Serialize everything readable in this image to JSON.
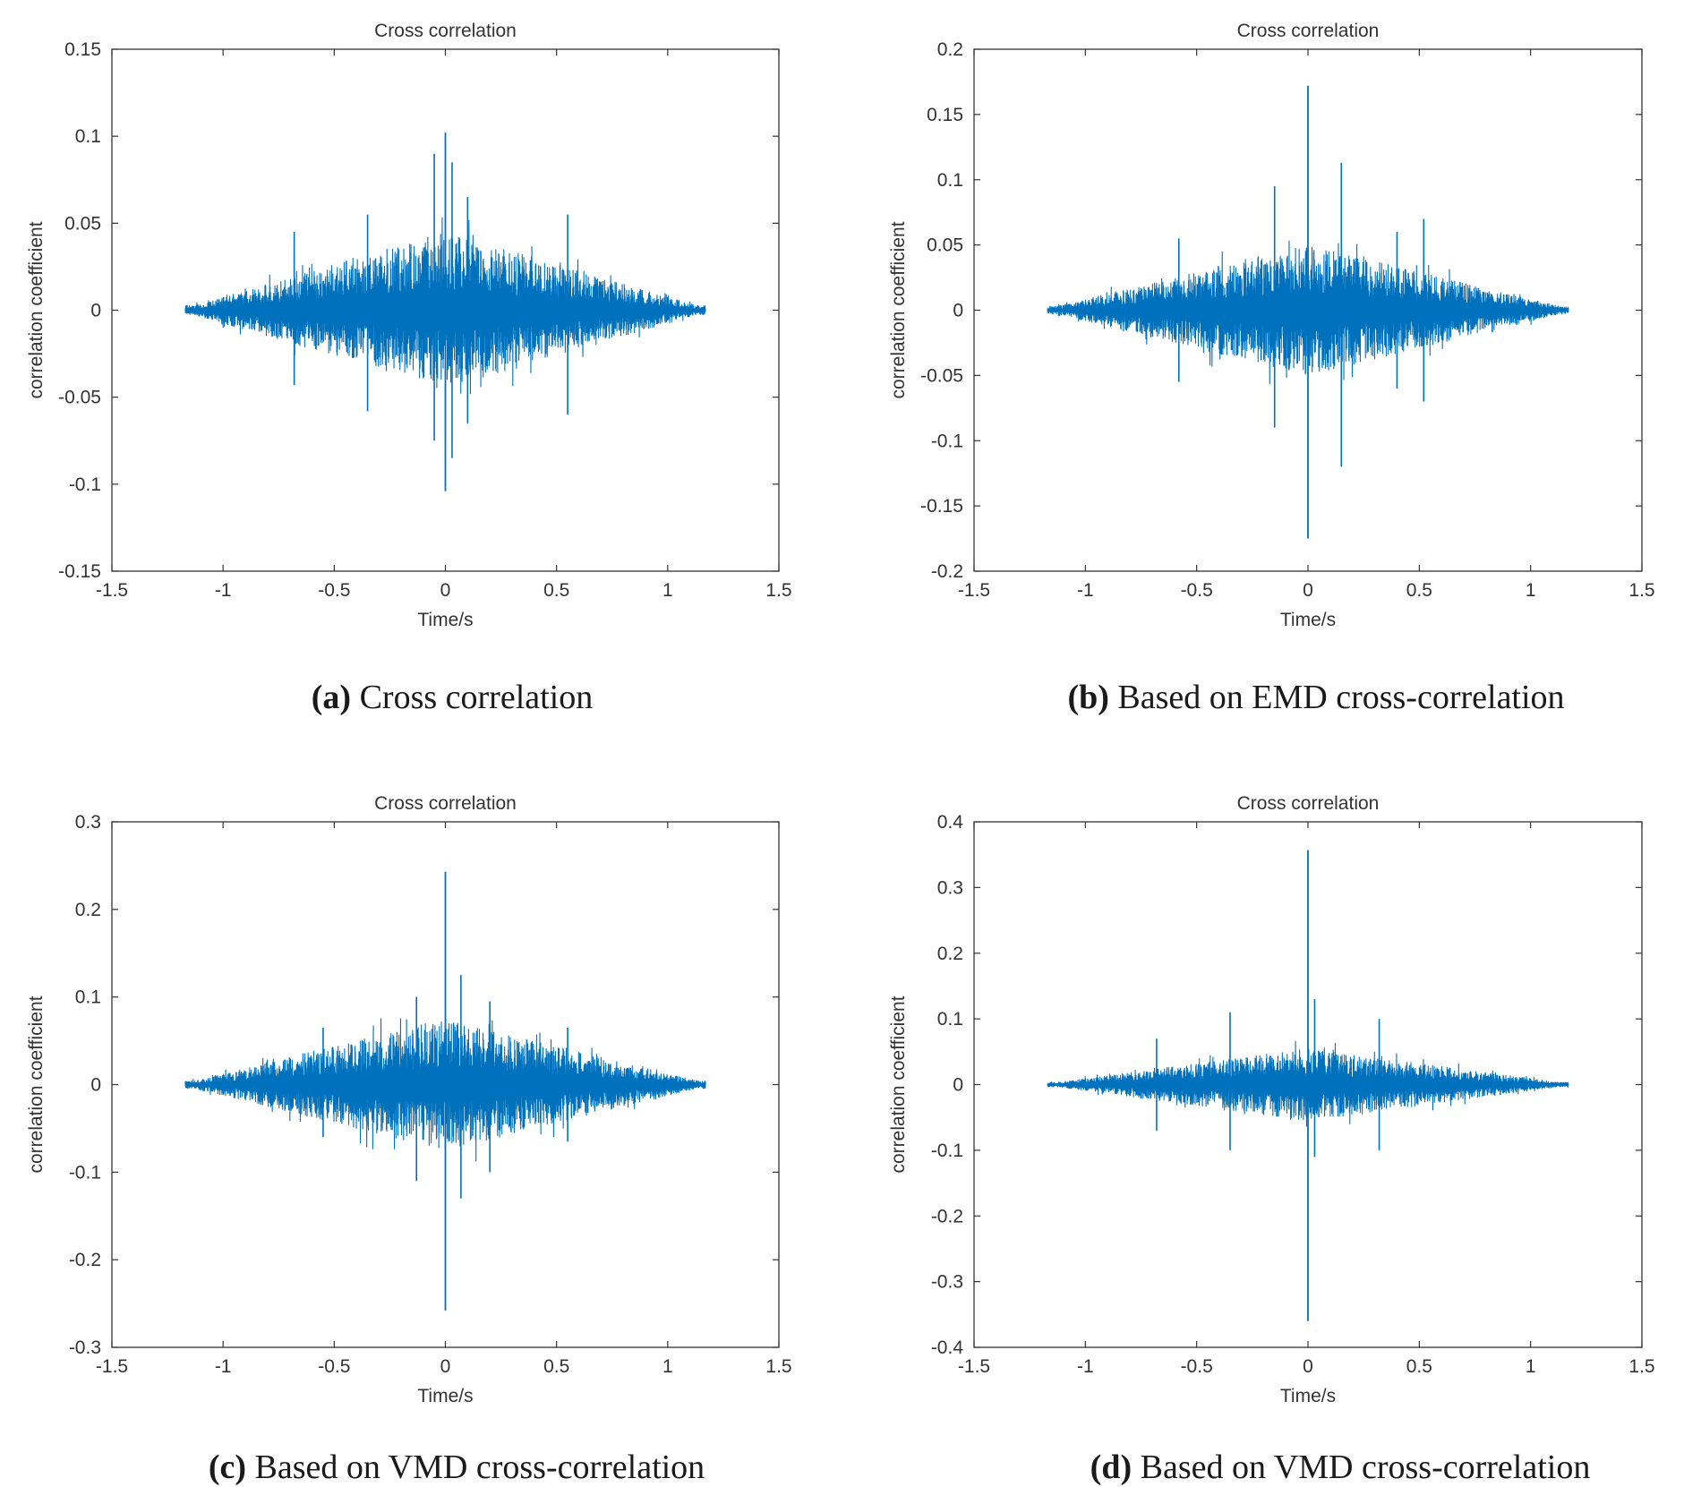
{
  "figure": {
    "captions": [
      {
        "letter": "(a)",
        "text": " Cross correlation"
      },
      {
        "letter": "(b)",
        "text": " Based on EMD cross-correlation"
      },
      {
        "letter": "(c)",
        "text": " Based on VMD cross-correlation"
      },
      {
        "letter": "(d)",
        "text": " Based on VMD cross-correlation"
      }
    ]
  },
  "colors": {
    "series": "#0072BD",
    "axis": "#333333",
    "text": "#333333"
  },
  "chart_data": [
    {
      "type": "line",
      "title": "Cross correlation",
      "xlabel": "Time/s",
      "ylabel": "correlation coefficient",
      "xlim": [
        -1.5,
        1.5
      ],
      "ylim": [
        -0.15,
        0.15
      ],
      "xticks": [
        -1.5,
        -1,
        -0.5,
        0,
        0.5,
        1,
        1.5
      ],
      "xtick_labels": [
        "-1.5",
        "-1",
        "-0.5",
        "0",
        "0.5",
        "1",
        "1.5"
      ],
      "yticks": [
        -0.15,
        -0.1,
        -0.05,
        0,
        0.05,
        0.1,
        0.15
      ],
      "ytick_labels": [
        "-0.15",
        "-0.1",
        "-0.05",
        "0",
        "0.05",
        "0.1",
        "0.15"
      ],
      "series": [
        {
          "name": "cross-correlation",
          "x_range": [
            -1.17,
            1.17
          ],
          "envelope_amplitude": 0.045,
          "peak": {
            "x": 0,
            "max": 0.102,
            "min": -0.104
          },
          "spikes": [
            {
              "x": -0.05,
              "max": 0.09,
              "min": -0.075
            },
            {
              "x": 0.03,
              "max": 0.085,
              "min": -0.085
            },
            {
              "x": 0.1,
              "max": 0.065,
              "min": -0.065
            },
            {
              "x": -0.35,
              "max": 0.055,
              "min": -0.058
            },
            {
              "x": 0.55,
              "max": 0.055,
              "min": -0.06
            },
            {
              "x": -0.68,
              "max": 0.045,
              "min": -0.043
            }
          ]
        }
      ]
    },
    {
      "type": "line",
      "title": "Cross correlation",
      "xlabel": "Time/s",
      "ylabel": "correlation coefficient",
      "xlim": [
        -1.5,
        1.5
      ],
      "ylim": [
        -0.2,
        0.2
      ],
      "xticks": [
        -1.5,
        -1,
        -0.5,
        0,
        0.5,
        1,
        1.5
      ],
      "xtick_labels": [
        "-1.5",
        "-1",
        "-0.5",
        "0",
        "0.5",
        "1",
        "1.5"
      ],
      "yticks": [
        -0.2,
        -0.15,
        -0.1,
        -0.05,
        0,
        0.05,
        0.1,
        0.15,
        0.2
      ],
      "ytick_labels": [
        "-0.2",
        "-0.15",
        "-0.1",
        "-0.05",
        "0",
        "0.05",
        "0.1",
        "0.15",
        "0.2"
      ],
      "series": [
        {
          "name": "EMD cross-correlation",
          "x_range": [
            -1.17,
            1.17
          ],
          "envelope_amplitude": 0.05,
          "peak": {
            "x": 0,
            "max": 0.172,
            "min": -0.175
          },
          "spikes": [
            {
              "x": 0.15,
              "max": 0.113,
              "min": -0.12
            },
            {
              "x": -0.15,
              "max": 0.095,
              "min": -0.09
            },
            {
              "x": 0.52,
              "max": 0.07,
              "min": -0.07
            },
            {
              "x": -0.58,
              "max": 0.055,
              "min": -0.055
            },
            {
              "x": 0.4,
              "max": 0.06,
              "min": -0.06
            }
          ]
        }
      ]
    },
    {
      "type": "line",
      "title": "Cross correlation",
      "xlabel": "Time/s",
      "ylabel": "correlation coefficient",
      "xlim": [
        -1.5,
        1.5
      ],
      "ylim": [
        -0.3,
        0.3
      ],
      "xticks": [
        -1.5,
        -1,
        -0.5,
        0,
        0.5,
        1,
        1.5
      ],
      "xtick_labels": [
        "-1.5",
        "-1",
        "-0.5",
        "0",
        "0.5",
        "1",
        "1.5"
      ],
      "yticks": [
        -0.3,
        -0.2,
        -0.1,
        0,
        0.1,
        0.2,
        0.3
      ],
      "ytick_labels": [
        "-0.3",
        "-0.2",
        "-0.1",
        "0",
        "0.1",
        "0.2",
        "0.3"
      ],
      "series": [
        {
          "name": "VMD cross-correlation",
          "x_range": [
            -1.17,
            1.17
          ],
          "envelope_amplitude": 0.075,
          "peak": {
            "x": 0,
            "max": 0.243,
            "min": -0.258
          },
          "spikes": [
            {
              "x": 0.07,
              "max": 0.125,
              "min": -0.13
            },
            {
              "x": -0.13,
              "max": 0.1,
              "min": -0.11
            },
            {
              "x": 0.2,
              "max": 0.095,
              "min": -0.1
            },
            {
              "x": -0.55,
              "max": 0.065,
              "min": -0.06
            },
            {
              "x": 0.55,
              "max": 0.065,
              "min": -0.065
            }
          ]
        }
      ]
    },
    {
      "type": "line",
      "title": "Cross correlation",
      "xlabel": "Time/s",
      "ylabel": "correlation coefficient",
      "xlim": [
        -1.5,
        1.5
      ],
      "ylim": [
        -0.4,
        0.4
      ],
      "xticks": [
        -1.5,
        -1,
        -0.5,
        0,
        0.5,
        1,
        1.5
      ],
      "xtick_labels": [
        "-1.5",
        "-1",
        "-0.5",
        "0",
        "0.5",
        "1",
        "1.5"
      ],
      "yticks": [
        -0.4,
        -0.3,
        -0.2,
        -0.1,
        0,
        0.1,
        0.2,
        0.3,
        0.4
      ],
      "ytick_labels": [
        "-0.4",
        "-0.3",
        "-0.2",
        "-0.1",
        "0",
        "0.1",
        "0.2",
        "0.3",
        "0.4"
      ],
      "series": [
        {
          "name": "VMD cross-correlation",
          "x_range": [
            -1.17,
            1.17
          ],
          "envelope_amplitude": 0.055,
          "peak": {
            "x": 0,
            "max": 0.357,
            "min": -0.36
          },
          "spikes": [
            {
              "x": 0.03,
              "max": 0.13,
              "min": -0.11
            },
            {
              "x": -0.35,
              "max": 0.11,
              "min": -0.1
            },
            {
              "x": 0.32,
              "max": 0.1,
              "min": -0.1
            },
            {
              "x": -0.68,
              "max": 0.07,
              "min": -0.07
            }
          ]
        }
      ]
    }
  ]
}
